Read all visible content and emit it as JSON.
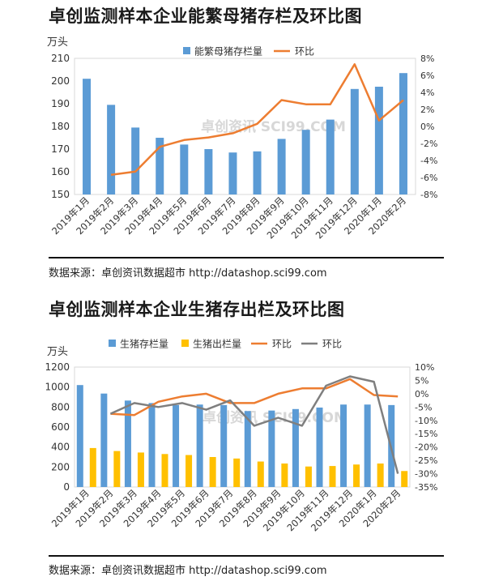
{
  "chart_data": [
    {
      "type": "bar",
      "title": "卓创监测样本企业能繁母猪存栏及环比图",
      "ylabel": "万头",
      "categories": [
        "2019年1月",
        "2019年2月",
        "2019年3月",
        "2019年4月",
        "2019年5月",
        "2019年6月",
        "2019年7月",
        "2019年8月",
        "2019年9月",
        "2019年10月",
        "2019年11月",
        "2019年12月",
        "2020年1月",
        "2020年2月"
      ],
      "ylim": [
        150,
        210
      ],
      "yticks": [
        "150",
        "160",
        "170",
        "180",
        "190",
        "200",
        "210"
      ],
      "y2lim": [
        -8,
        8
      ],
      "y2ticks": [
        "-8%",
        "-6%",
        "-4%",
        "-2%",
        "0%",
        "2%",
        "4%",
        "6%",
        "8%"
      ],
      "series": [
        {
          "name": "能繁母猪存栏量",
          "type": "bar",
          "axis": "left",
          "color": "#5b9bd5",
          "values": [
            201,
            189.5,
            179.5,
            175,
            172,
            170,
            168.5,
            169,
            174.5,
            178.5,
            183,
            196.5,
            197.5,
            203.5
          ]
        },
        {
          "name": "环比",
          "type": "line",
          "axis": "right",
          "color": "#ed7d31",
          "values": [
            null,
            -5.7,
            -5.3,
            -2.4,
            -1.6,
            -1.3,
            -0.8,
            0.3,
            3.1,
            2.6,
            2.6,
            7.3,
            0.7,
            3.1
          ]
        }
      ],
      "legend": "top",
      "source": "数据来源：卓创资讯数据超市 http://datashop.sci99.com",
      "watermark": "卓创资讯 SCI99.COM"
    },
    {
      "type": "bar",
      "title": "卓创监测样本企业生猪存出栏及环比图",
      "ylabel": "万头",
      "categories": [
        "2019年1月",
        "2019年2月",
        "2019年3月",
        "2019年4月",
        "2019年5月",
        "2019年6月",
        "2019年7月",
        "2019年8月",
        "2019年9月",
        "2019年10月",
        "2019年11月",
        "2019年12月",
        "2020年1月",
        "2020年2月"
      ],
      "ylim": [
        0,
        1200
      ],
      "yticks": [
        "0",
        "200",
        "400",
        "600",
        "800",
        "1000",
        "1200"
      ],
      "y2lim": [
        -35,
        10
      ],
      "y2ticks": [
        "-35%",
        "-30%",
        "-25%",
        "-20%",
        "-15%",
        "-10%",
        "-5%",
        "0%",
        "5%",
        "10%"
      ],
      "series": [
        {
          "name": "生猪存栏量",
          "type": "bar",
          "axis": "left",
          "color": "#5b9bd5",
          "values": [
            1020,
            935,
            865,
            840,
            820,
            825,
            820,
            760,
            765,
            780,
            795,
            825,
            825,
            820
          ]
        },
        {
          "name": "生猪出栏量",
          "type": "bar",
          "axis": "left",
          "color": "#ffc000",
          "values": [
            390,
            360,
            345,
            330,
            320,
            300,
            285,
            255,
            235,
            205,
            210,
            225,
            235,
            160
          ]
        },
        {
          "name": "环比",
          "type": "line",
          "axis": "right",
          "color": "#ed7d31",
          "values": [
            null,
            -7.5,
            -8,
            -3,
            -1,
            0,
            -3.5,
            -3.5,
            0,
            2,
            2,
            5.5,
            -0.5,
            -1
          ]
        },
        {
          "name": "环比",
          "type": "line",
          "axis": "right",
          "color": "#7f7f7f",
          "values": [
            null,
            -7.5,
            -3.5,
            -5,
            -3.5,
            -6,
            -2.5,
            -12,
            -9,
            -12,
            3,
            6.5,
            4.5,
            -30
          ]
        }
      ],
      "legend": "top",
      "source": "数据来源：卓创资讯数据超市 http://datashop.sci99.com",
      "watermark": "卓创资讯 SCI99.COM"
    }
  ]
}
